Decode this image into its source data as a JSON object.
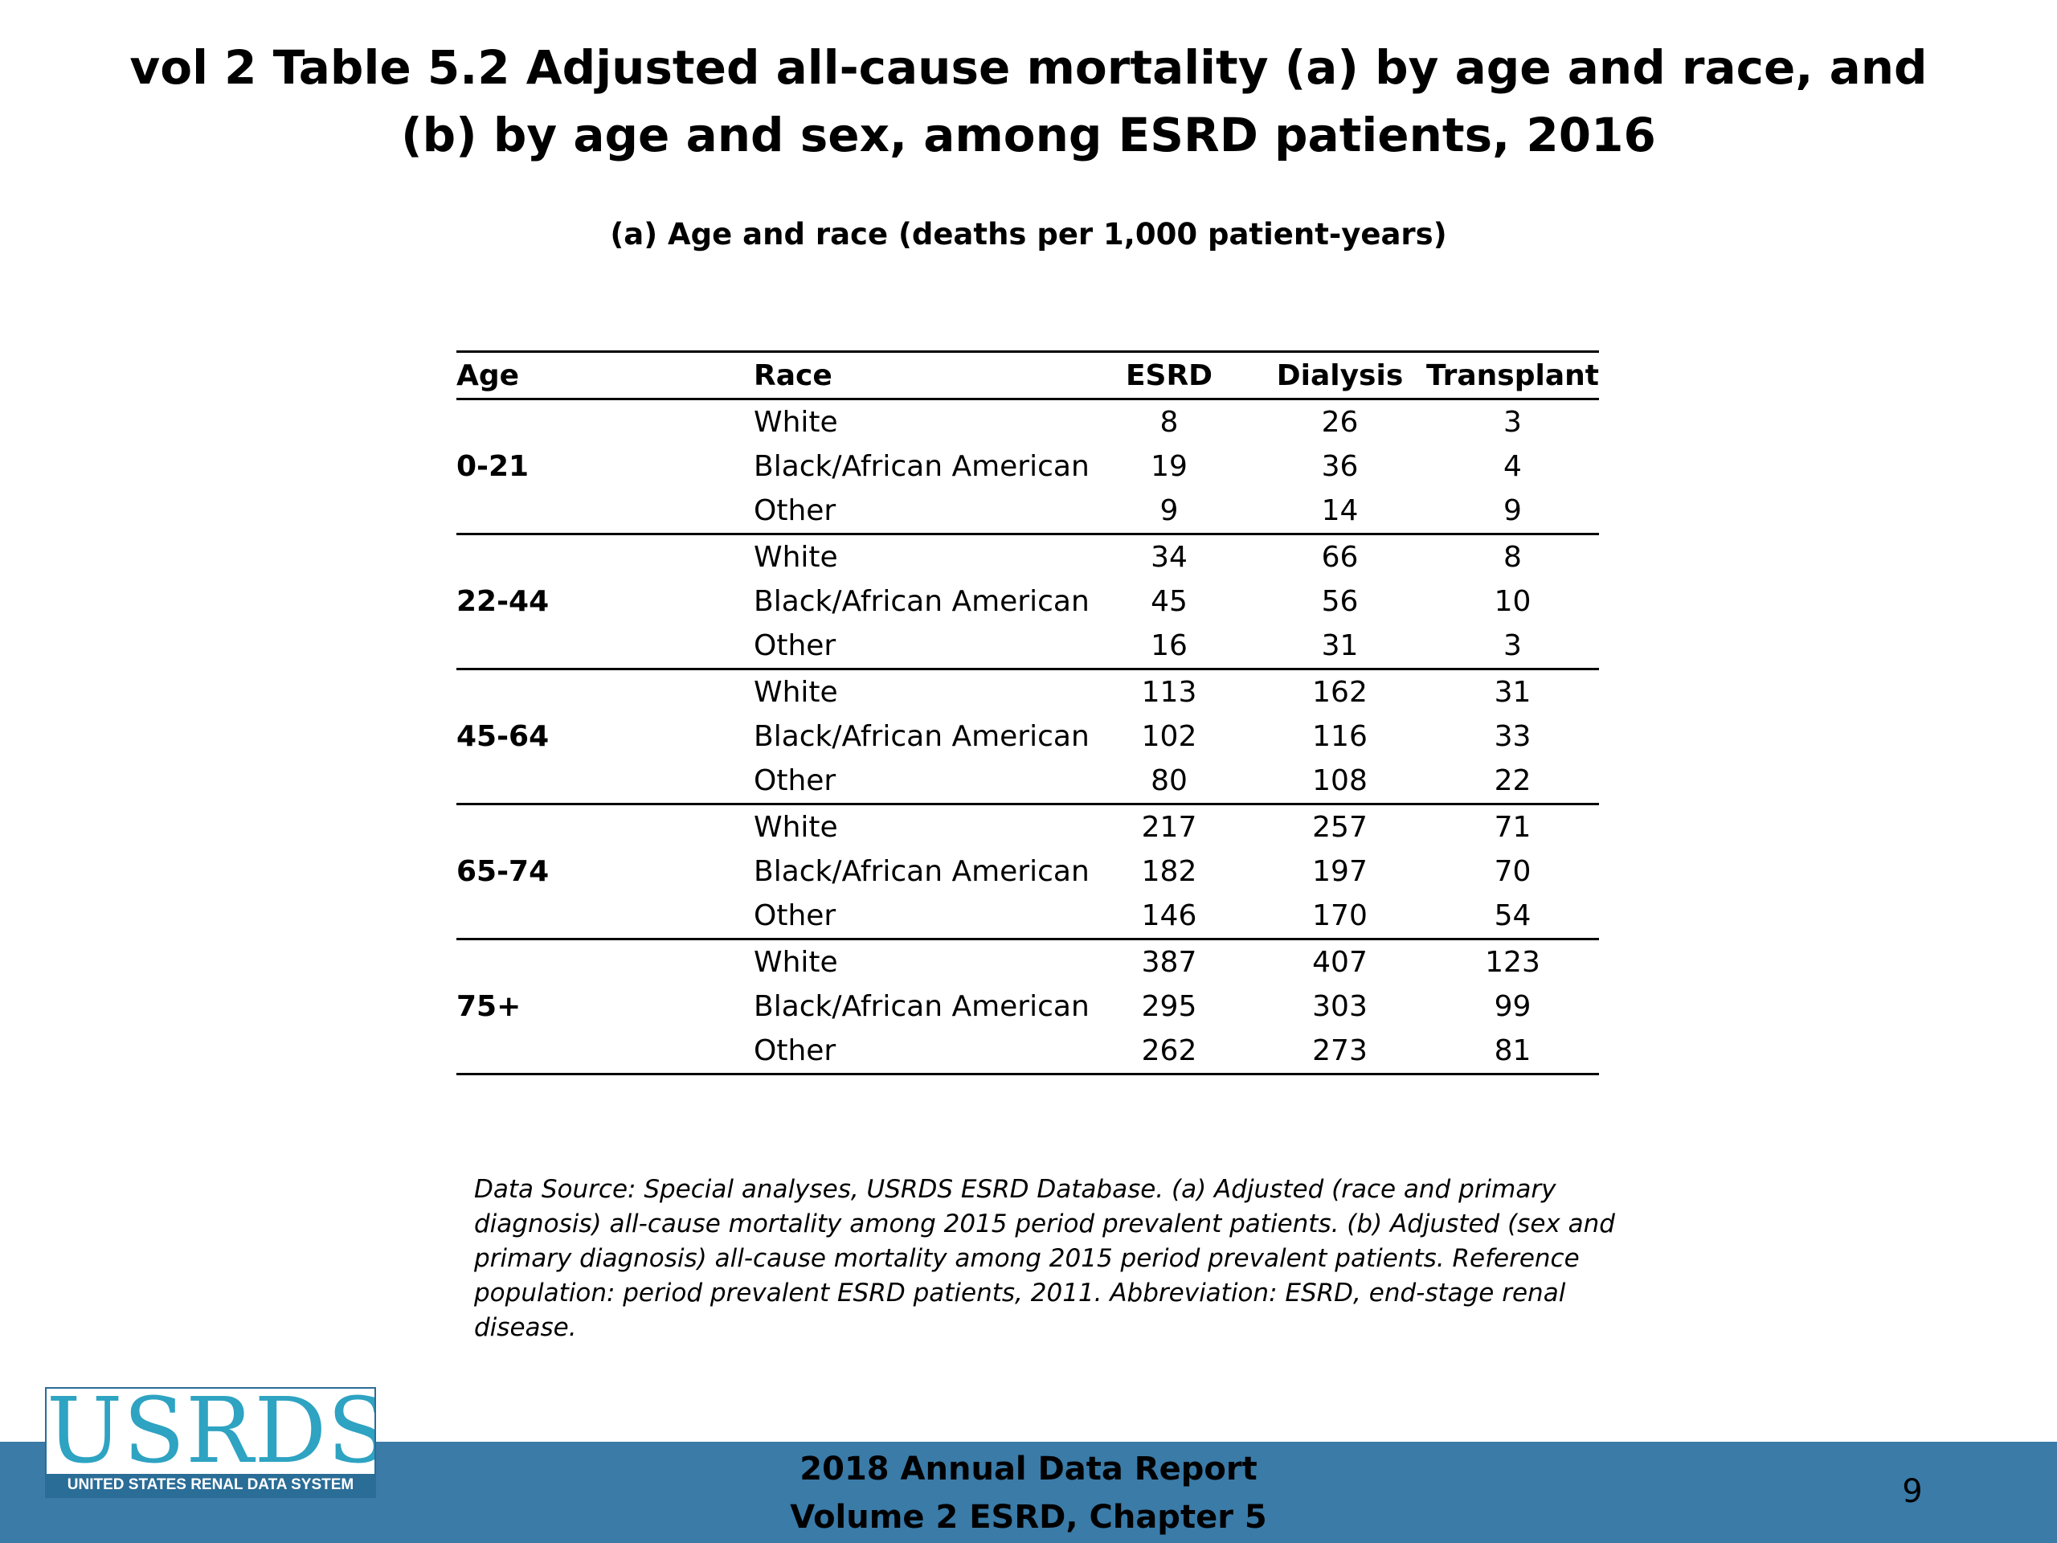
{
  "slide": {
    "title": "vol 2 Table 5.2 Adjusted all-cause mortality (a) by age and race, and (b) by age and sex, among ESRD patients, 2016",
    "subtitle": "(a) Age and race (deaths per 1,000 patient-years)"
  },
  "table": {
    "headers": {
      "age": "Age",
      "race": "Race",
      "esrd": "ESRD",
      "dialysis": "Dialysis",
      "transplant": "Transplant"
    },
    "groups": [
      {
        "age": "0-21",
        "rows": [
          {
            "race": "White",
            "esrd": "8",
            "dialysis": "26",
            "transplant": "3"
          },
          {
            "race": "Black/African American",
            "esrd": "19",
            "dialysis": "36",
            "transplant": "4"
          },
          {
            "race": "Other",
            "esrd": "9",
            "dialysis": "14",
            "transplant": "9"
          }
        ]
      },
      {
        "age": "22-44",
        "rows": [
          {
            "race": "White",
            "esrd": "34",
            "dialysis": "66",
            "transplant": "8"
          },
          {
            "race": "Black/African American",
            "esrd": "45",
            "dialysis": "56",
            "transplant": "10"
          },
          {
            "race": "Other",
            "esrd": "16",
            "dialysis": "31",
            "transplant": "3"
          }
        ]
      },
      {
        "age": "45-64",
        "rows": [
          {
            "race": "White",
            "esrd": "113",
            "dialysis": "162",
            "transplant": "31"
          },
          {
            "race": "Black/African American",
            "esrd": "102",
            "dialysis": "116",
            "transplant": "33"
          },
          {
            "race": "Other",
            "esrd": "80",
            "dialysis": "108",
            "transplant": "22"
          }
        ]
      },
      {
        "age": "65-74",
        "rows": [
          {
            "race": "White",
            "esrd": "217",
            "dialysis": "257",
            "transplant": "71"
          },
          {
            "race": "Black/African American",
            "esrd": "182",
            "dialysis": "197",
            "transplant": "70"
          },
          {
            "race": "Other",
            "esrd": "146",
            "dialysis": "170",
            "transplant": "54"
          }
        ]
      },
      {
        "age": "75+",
        "rows": [
          {
            "race": "White",
            "esrd": "387",
            "dialysis": "407",
            "transplant": "123"
          },
          {
            "race": "Black/African American",
            "esrd": "295",
            "dialysis": "303",
            "transplant": "99"
          },
          {
            "race": "Other",
            "esrd": "262",
            "dialysis": "273",
            "transplant": "81"
          }
        ]
      }
    ]
  },
  "data_source": "Data Source: Special analyses, USRDS ESRD Database. (a) Adjusted (race and primary diagnosis) all-cause mortality among 2015 period prevalent patients. (b) Adjusted (sex and primary diagnosis) all-cause mortality among 2015 period prevalent patients. Reference population: period prevalent ESRD patients, 2011. Abbreviation: ESRD, end-stage renal disease.",
  "logo": {
    "wordmark": "USRDS",
    "tagline": "UNITED STATES RENAL DATA SYSTEM"
  },
  "footer": {
    "line1": "2018 Annual Data Report",
    "line2": "Volume 2 ESRD, Chapter 5",
    "page_number": "9"
  },
  "colors": {
    "footer_bar": "#3a7ba8",
    "logo_text": "#2ea3c2",
    "logo_band": "#2a6d97"
  }
}
